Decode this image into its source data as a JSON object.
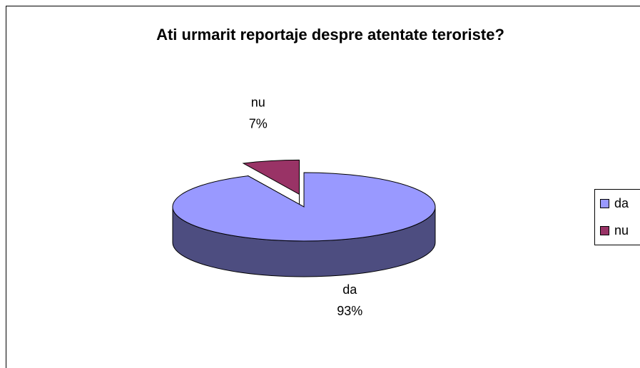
{
  "chart_data": {
    "type": "pie",
    "title": "Ati urmarit reportaje despre atentate teroriste?",
    "categories": [
      "da",
      "nu"
    ],
    "values": [
      93,
      7
    ],
    "value_labels": [
      "93%",
      "7%"
    ],
    "colors": [
      "#9999ff",
      "#993366"
    ],
    "side_colors": [
      "#4d4d80",
      "#4d1a33"
    ],
    "exploded": [
      false,
      true
    ],
    "legend": "right"
  }
}
